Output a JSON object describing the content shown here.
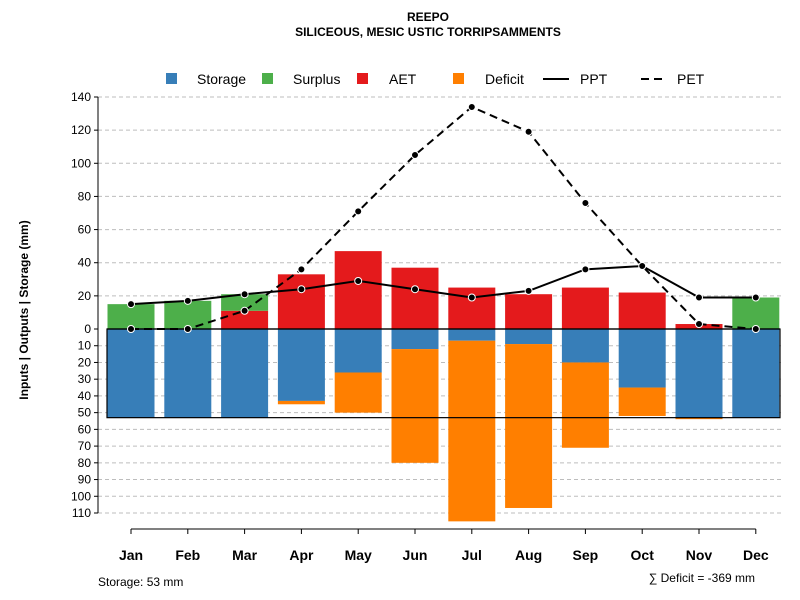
{
  "chart_data": {
    "type": "bar",
    "title": "REEPO",
    "subtitle": "SILICEOUS, MESIC USTIC TORRIPSAMMENTS",
    "ylabel": "Inputs | Outputs | Storage    (mm)",
    "ylim_top": [
      0,
      140
    ],
    "ylim_bottom": [
      0,
      110
    ],
    "ticks_top": [
      0,
      20,
      40,
      60,
      80,
      100,
      120,
      140
    ],
    "ticks_bottom": [
      10,
      20,
      30,
      40,
      50,
      60,
      70,
      80,
      90,
      100,
      110
    ],
    "categories": [
      "Jan",
      "Feb",
      "Mar",
      "Apr",
      "May",
      "Jun",
      "Jul",
      "Aug",
      "Sep",
      "Oct",
      "Nov",
      "Dec"
    ],
    "series": [
      {
        "name": "Storage",
        "color": "#377EB8",
        "values": [
          53,
          53,
          53,
          43,
          26,
          12,
          7,
          9,
          20,
          35,
          53,
          53
        ]
      },
      {
        "name": "Surplus",
        "color": "#4DAF4A",
        "values": [
          15,
          17,
          10,
          0,
          0,
          0,
          0,
          0,
          0,
          0,
          0,
          19
        ]
      },
      {
        "name": "AET",
        "color": "#E41A1C",
        "values": [
          0,
          0,
          11,
          33,
          47,
          37,
          25,
          21,
          25,
          22,
          3,
          0
        ]
      },
      {
        "name": "Deficit",
        "color": "#FF7F00",
        "values": [
          0,
          0,
          0,
          2,
          24,
          68,
          108,
          98,
          51,
          17,
          0.8,
          0
        ]
      },
      {
        "name": "PPT",
        "color": "#000000",
        "values": [
          15,
          17,
          21,
          24,
          29,
          24,
          19,
          23,
          36,
          38,
          19,
          19
        ]
      },
      {
        "name": "PET",
        "color": "#000000",
        "values": [
          0,
          0,
          11,
          36,
          71,
          105,
          134,
          119,
          76,
          38,
          3,
          0
        ]
      }
    ],
    "legend": [
      "Storage",
      "Surplus",
      "AET",
      "Deficit",
      "PPT",
      "PET"
    ],
    "storage_capacity": 53,
    "grid": true,
    "legend_placement": "top-center"
  },
  "footer": {
    "storage_label": "Storage: 53 mm",
    "deficit_label": "∑ Deficit = -369 mm"
  }
}
